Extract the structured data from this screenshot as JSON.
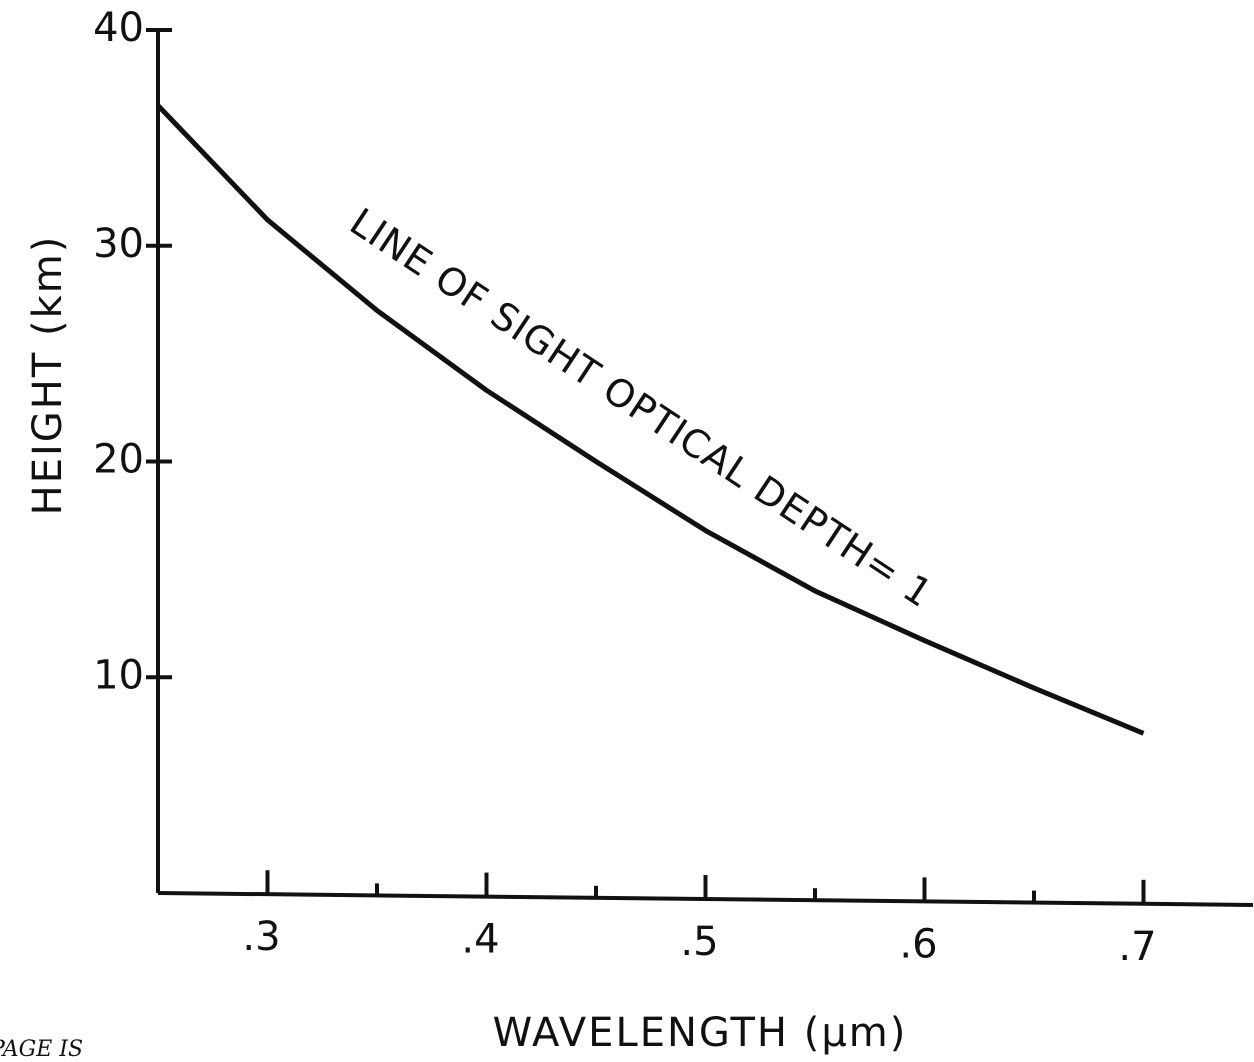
{
  "chart_data": {
    "type": "line",
    "x_label": "WAVELENGTH (μm)",
    "y_label": "HEIGHT (km)",
    "annotation": "LINE OF SIGHT OPTICAL DEPTH= 1",
    "footer": "PAGE IS",
    "x": [
      0.25,
      0.3,
      0.35,
      0.4,
      0.45,
      0.5,
      0.55,
      0.6,
      0.65,
      0.7
    ],
    "series": [
      {
        "color": "#111111",
        "values": [
          36.5,
          31.2,
          27.0,
          23.3,
          20.0,
          16.8,
          14.0,
          11.7,
          9.5,
          7.4
        ]
      }
    ],
    "xlim": [
      0.25,
      0.75
    ],
    "ylim": [
      0,
      40
    ],
    "xticks": [
      {
        "value": 0.3,
        "label": ".3"
      },
      {
        "value": 0.4,
        "label": ".4"
      },
      {
        "value": 0.5,
        "label": ".5"
      },
      {
        "value": 0.6,
        "label": ".6"
      },
      {
        "value": 0.7,
        "label": ".7"
      }
    ],
    "xminorticks": [
      0.35,
      0.45,
      0.55,
      0.65
    ],
    "yticks": [
      10,
      20,
      30,
      40
    ],
    "grid": false
  }
}
